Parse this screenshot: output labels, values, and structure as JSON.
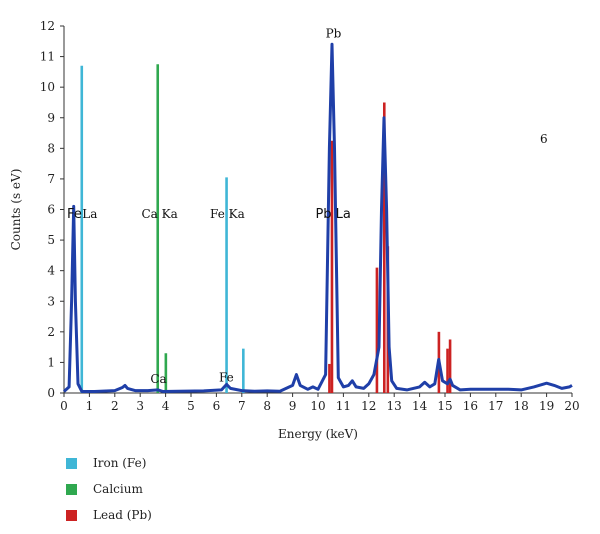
{
  "chart_data": {
    "type": "line",
    "xlabel": "Energy (keV)",
    "ylabel": "Counts (s eV)",
    "xlim": [
      0,
      20
    ],
    "ylim": [
      0,
      12
    ],
    "x_ticks": [
      0,
      1,
      2,
      3,
      4,
      5,
      6,
      7,
      8,
      9,
      10,
      11,
      12,
      13,
      14,
      15,
      16,
      17,
      18,
      19,
      20
    ],
    "y_ticks": [
      0,
      1,
      2,
      3,
      4,
      5,
      6,
      7,
      8,
      9,
      10,
      11,
      12
    ],
    "grid": false,
    "legend_position": "bottom-left",
    "panel_label": "6",
    "spectrum": {
      "color": "#1f3fa8",
      "points": [
        [
          0.0,
          0.05
        ],
        [
          0.2,
          0.2
        ],
        [
          0.3,
          3.0
        ],
        [
          0.38,
          6.1
        ],
        [
          0.45,
          3.0
        ],
        [
          0.55,
          0.3
        ],
        [
          0.7,
          0.05
        ],
        [
          1.2,
          0.05
        ],
        [
          2.0,
          0.08
        ],
        [
          2.3,
          0.18
        ],
        [
          2.4,
          0.25
        ],
        [
          2.5,
          0.15
        ],
        [
          2.8,
          0.08
        ],
        [
          3.3,
          0.08
        ],
        [
          3.7,
          0.1
        ],
        [
          3.9,
          0.05
        ],
        [
          4.5,
          0.06
        ],
        [
          5.5,
          0.07
        ],
        [
          6.2,
          0.1
        ],
        [
          6.4,
          0.28
        ],
        [
          6.55,
          0.15
        ],
        [
          7.0,
          0.08
        ],
        [
          7.5,
          0.06
        ],
        [
          8.0,
          0.07
        ],
        [
          8.5,
          0.06
        ],
        [
          9.0,
          0.25
        ],
        [
          9.15,
          0.6
        ],
        [
          9.3,
          0.25
        ],
        [
          9.6,
          0.12
        ],
        [
          9.8,
          0.2
        ],
        [
          10.0,
          0.12
        ],
        [
          10.3,
          0.6
        ],
        [
          10.45,
          8.0
        ],
        [
          10.55,
          11.4
        ],
        [
          10.65,
          8.0
        ],
        [
          10.8,
          0.5
        ],
        [
          11.0,
          0.2
        ],
        [
          11.2,
          0.25
        ],
        [
          11.35,
          0.4
        ],
        [
          11.5,
          0.2
        ],
        [
          11.8,
          0.15
        ],
        [
          12.0,
          0.3
        ],
        [
          12.2,
          0.6
        ],
        [
          12.4,
          1.5
        ],
        [
          12.5,
          6.0
        ],
        [
          12.6,
          9.0
        ],
        [
          12.7,
          6.0
        ],
        [
          12.8,
          1.5
        ],
        [
          12.9,
          0.4
        ],
        [
          13.1,
          0.15
        ],
        [
          13.5,
          0.1
        ],
        [
          14.0,
          0.2
        ],
        [
          14.2,
          0.35
        ],
        [
          14.4,
          0.2
        ],
        [
          14.6,
          0.3
        ],
        [
          14.75,
          1.1
        ],
        [
          14.9,
          0.4
        ],
        [
          15.1,
          0.3
        ],
        [
          15.2,
          0.45
        ],
        [
          15.3,
          0.25
        ],
        [
          15.6,
          0.1
        ],
        [
          16.0,
          0.12
        ],
        [
          17.0,
          0.12
        ],
        [
          17.5,
          0.12
        ],
        [
          18.0,
          0.1
        ],
        [
          18.5,
          0.2
        ],
        [
          19.0,
          0.32
        ],
        [
          19.3,
          0.25
        ],
        [
          19.6,
          0.15
        ],
        [
          19.9,
          0.2
        ],
        [
          20.0,
          0.25
        ]
      ]
    },
    "series": [
      {
        "name": "Iron (Fe)",
        "color": "#3fb6d6",
        "lines": [
          [
            0.7,
            10.7
          ],
          [
            6.4,
            7.05
          ],
          [
            7.06,
            1.45
          ]
        ]
      },
      {
        "name": "Calcium",
        "color": "#2fa84f",
        "lines": [
          [
            3.69,
            10.75
          ],
          [
            4.01,
            1.3
          ]
        ]
      },
      {
        "name": "Lead (Pb)",
        "color": "#cc2222",
        "lines": [
          [
            10.45,
            0.95
          ],
          [
            10.55,
            8.25
          ],
          [
            12.32,
            4.1
          ],
          [
            12.61,
            9.5
          ],
          [
            12.75,
            4.8
          ],
          [
            14.76,
            2.0
          ],
          [
            15.1,
            1.45
          ],
          [
            15.2,
            1.75
          ]
        ]
      }
    ],
    "annotations": [
      {
        "text": "Fe",
        "x": 0.12,
        "y": 5.85,
        "big": true
      },
      {
        "text": "La",
        "x": 0.72,
        "y": 5.85,
        "big": false
      },
      {
        "text": "Ca Ka",
        "x": 3.05,
        "y": 5.85,
        "big": false
      },
      {
        "text": "Fe Ka",
        "x": 5.75,
        "y": 5.85,
        "big": false
      },
      {
        "text": "Pb La",
        "x": 9.9,
        "y": 5.85,
        "big": true
      },
      {
        "text": "Pb",
        "x": 10.3,
        "y": 11.75,
        "big": false
      },
      {
        "text": "Ca",
        "x": 3.4,
        "y": 0.45,
        "big": false
      },
      {
        "text": "Fe",
        "x": 6.1,
        "y": 0.5,
        "big": false
      }
    ]
  },
  "legend": {
    "items": [
      {
        "label": "Iron (Fe)",
        "color": "#3fb6d6"
      },
      {
        "label": "Calcium",
        "color": "#2fa84f"
      },
      {
        "label": "Lead (Pb)",
        "color": "#cc2222"
      }
    ]
  }
}
